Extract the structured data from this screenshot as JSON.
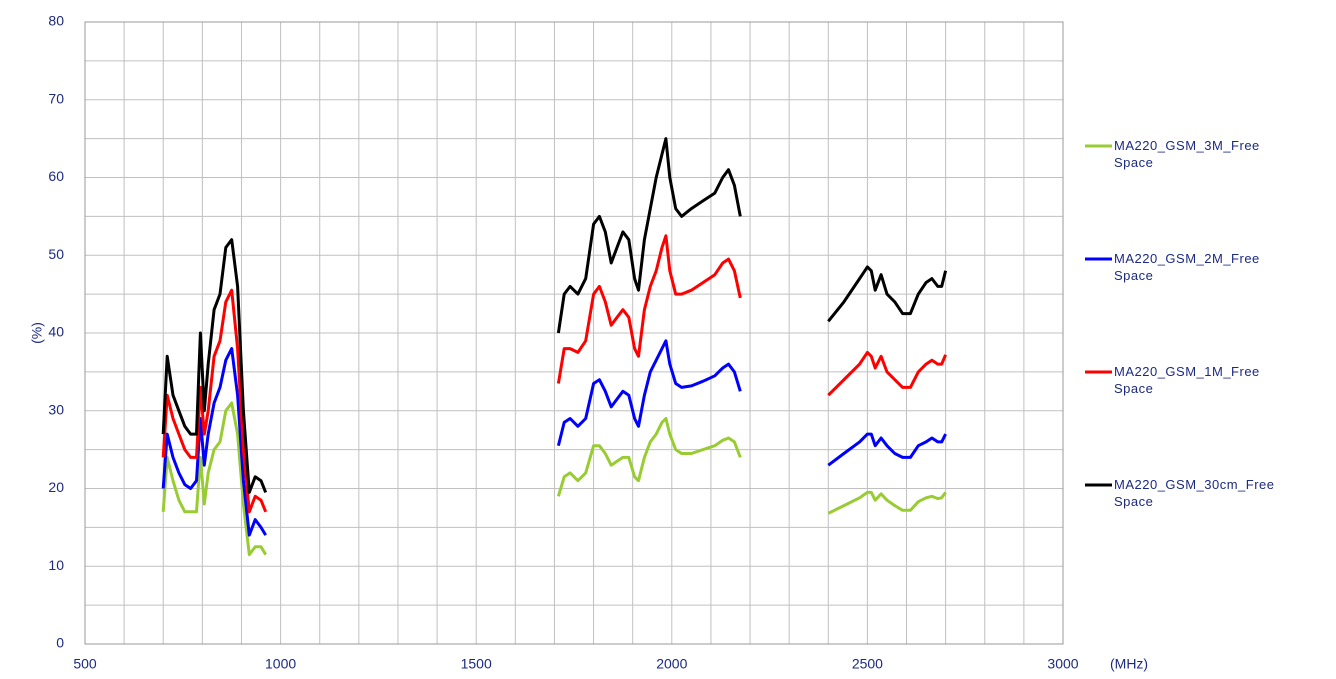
{
  "chart_data": {
    "type": "line",
    "xlabel": "(MHz)",
    "ylabel": "(%)",
    "x": [
      700,
      710,
      725,
      740,
      755,
      770,
      785,
      795,
      805,
      815,
      830,
      845,
      860,
      875,
      890,
      905,
      920,
      935,
      950,
      962,
      1300,
      1710,
      1725,
      1740,
      1760,
      1780,
      1800,
      1815,
      1830,
      1845,
      1860,
      1875,
      1890,
      1905,
      1915,
      1930,
      1945,
      1960,
      1975,
      1985,
      1995,
      2010,
      2025,
      2050,
      2080,
      2110,
      2130,
      2145,
      2160,
      2175,
      2300,
      2400,
      2440,
      2480,
      2500,
      2510,
      2520,
      2535,
      2550,
      2570,
      2590,
      2610,
      2630,
      2650,
      2665,
      2680,
      2690,
      2700
    ],
    "series": [
      {
        "name": "MA220_GSM_3M_Free Space",
        "color": "#99cc33",
        "values": [
          17,
          24,
          21,
          18.5,
          17,
          17,
          17,
          24,
          18,
          22,
          25,
          26,
          30,
          31,
          27,
          18,
          11.5,
          12.5,
          12.5,
          11.5,
          null,
          19,
          21.5,
          22,
          21,
          22,
          25.5,
          25.5,
          24.5,
          23,
          23.5,
          24,
          24,
          21.5,
          21,
          24,
          26,
          27,
          28.5,
          29,
          27,
          25,
          24.5,
          24.5,
          25,
          25.5,
          26.2,
          26.5,
          26,
          24,
          null,
          16.8,
          17.8,
          18.8,
          19.5,
          19.5,
          18.5,
          19.3,
          18.5,
          17.8,
          17.2,
          17.2,
          18.3,
          18.8,
          19,
          18.7,
          18.8,
          19.5
        ]
      },
      {
        "name": "MA220_GSM_2M_Free Space",
        "color": "#0000ff",
        "values": [
          20,
          27,
          24,
          22,
          20.5,
          20,
          21,
          29,
          23,
          27,
          31,
          33,
          36.5,
          38,
          32,
          21,
          14,
          16,
          15,
          14,
          null,
          25.5,
          28.5,
          29,
          28,
          29,
          33.5,
          34,
          32.5,
          30.5,
          31.5,
          32.5,
          32,
          29,
          28,
          32,
          35,
          36.5,
          38,
          39,
          36,
          33.5,
          33,
          33.2,
          33.8,
          34.5,
          35.5,
          36,
          35,
          32.5,
          null,
          23,
          24.5,
          26,
          27,
          27,
          25.5,
          26.5,
          25.5,
          24.5,
          24,
          24,
          25.5,
          26,
          26.5,
          26,
          26,
          27
        ]
      },
      {
        "name": "MA220_GSM_1M_Free Space",
        "color": "#ff0000",
        "values": [
          24,
          32,
          29,
          27,
          25,
          24,
          24,
          33,
          27,
          30,
          37,
          39,
          44,
          45.5,
          38,
          25,
          17,
          19,
          18.5,
          17,
          null,
          33.5,
          38,
          38,
          37.5,
          39,
          45,
          46,
          44,
          41,
          42,
          43,
          42,
          38,
          37,
          43,
          46,
          48,
          51,
          52.5,
          48,
          45,
          45,
          45.5,
          46.5,
          47.5,
          49,
          49.5,
          48,
          44.5,
          null,
          32,
          34,
          36,
          37.5,
          37,
          35.5,
          37,
          35,
          34,
          33,
          33,
          35,
          36,
          36.5,
          36,
          36,
          37.2
        ]
      },
      {
        "name": "MA220_GSM_30cm_Free Space",
        "color": "#000000",
        "values": [
          27,
          37,
          32,
          30,
          28,
          27,
          27,
          40,
          30,
          36,
          43,
          45,
          51,
          52,
          46,
          30,
          19.5,
          21.5,
          21,
          19.5,
          null,
          40,
          45,
          46,
          45,
          47,
          54,
          55,
          53,
          49,
          51,
          53,
          52,
          47,
          45.5,
          52,
          56,
          60,
          63,
          65,
          60,
          56,
          55,
          56,
          57,
          58,
          60,
          61,
          59,
          55,
          null,
          41.5,
          44,
          47,
          48.5,
          48,
          45.5,
          47.5,
          45,
          44,
          42.5,
          42.5,
          45,
          46.5,
          47,
          46,
          46,
          48
        ]
      }
    ],
    "xlim": [
      500,
      3000
    ],
    "ylim": [
      0,
      80
    ],
    "xticks": [
      500,
      1000,
      1500,
      2000,
      2500,
      3000
    ],
    "yticks": [
      0,
      10,
      20,
      30,
      40,
      50,
      60,
      70,
      80
    ],
    "xminor": [
      600,
      700,
      800,
      900,
      1100,
      1200,
      1300,
      1400,
      1600,
      1700,
      1800,
      1900,
      2100,
      2200,
      2300,
      2400,
      2600,
      2700,
      2800,
      2900
    ],
    "yminor": [
      5,
      15,
      25,
      35,
      45,
      55,
      65,
      75
    ],
    "grid": true,
    "legend": "right"
  }
}
